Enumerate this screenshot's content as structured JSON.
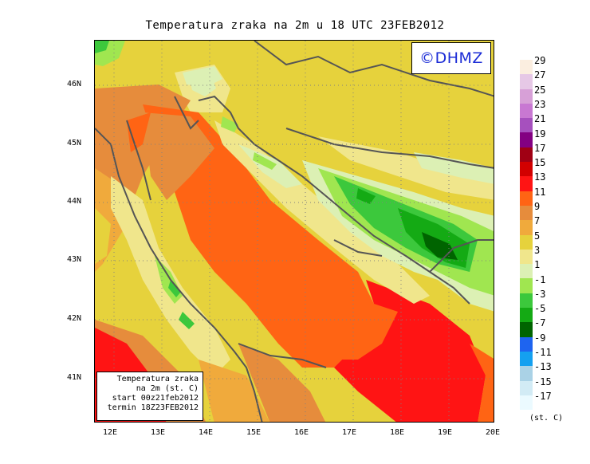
{
  "title": "Temperatura zraka na 2m u 18 UTC 23FEB2012",
  "brand": "©DHMZ",
  "info_box": {
    "line1": "Temperatura zraka",
    "line2": "na 2m (st. C)",
    "line3": "start 00z21feb2012",
    "line4": "termin 18Z23FEB2012"
  },
  "lat_labels": [
    "46N",
    "45N",
    "44N",
    "43N",
    "42N",
    "41N"
  ],
  "lon_labels": [
    "12E",
    "13E",
    "14E",
    "15E",
    "16E",
    "17E",
    "18E",
    "19E",
    "20E"
  ],
  "legend": {
    "unit": "(st. C)",
    "labels": [
      "29",
      "27",
      "25",
      "23",
      "21",
      "19",
      "17",
      "15",
      "13",
      "11",
      "9",
      "7",
      "5",
      "3",
      "1",
      "-1",
      "-3",
      "-5",
      "-7",
      "-9",
      "-11",
      "-13",
      "-15",
      "-17"
    ],
    "colors": [
      "#fbeee0",
      "#e6c8e6",
      "#d7a0d7",
      "#c878d2",
      "#a650be",
      "#830082",
      "#a00014",
      "#d20000",
      "#ff1414",
      "#ff6414",
      "#e68c3c",
      "#f0aa3c",
      "#e6d23c",
      "#f0e68c",
      "#dcf0b4",
      "#a0e650",
      "#3cc83c",
      "#14aa14",
      "#006400",
      "#1e64f0",
      "#14a0f0",
      "#aad2e6",
      "#d2ebf5",
      "#ebfaff"
    ]
  },
  "colors": {
    "brand_text": "#1a2bd6",
    "coast_line": "#555555",
    "grid": "#808080"
  }
}
